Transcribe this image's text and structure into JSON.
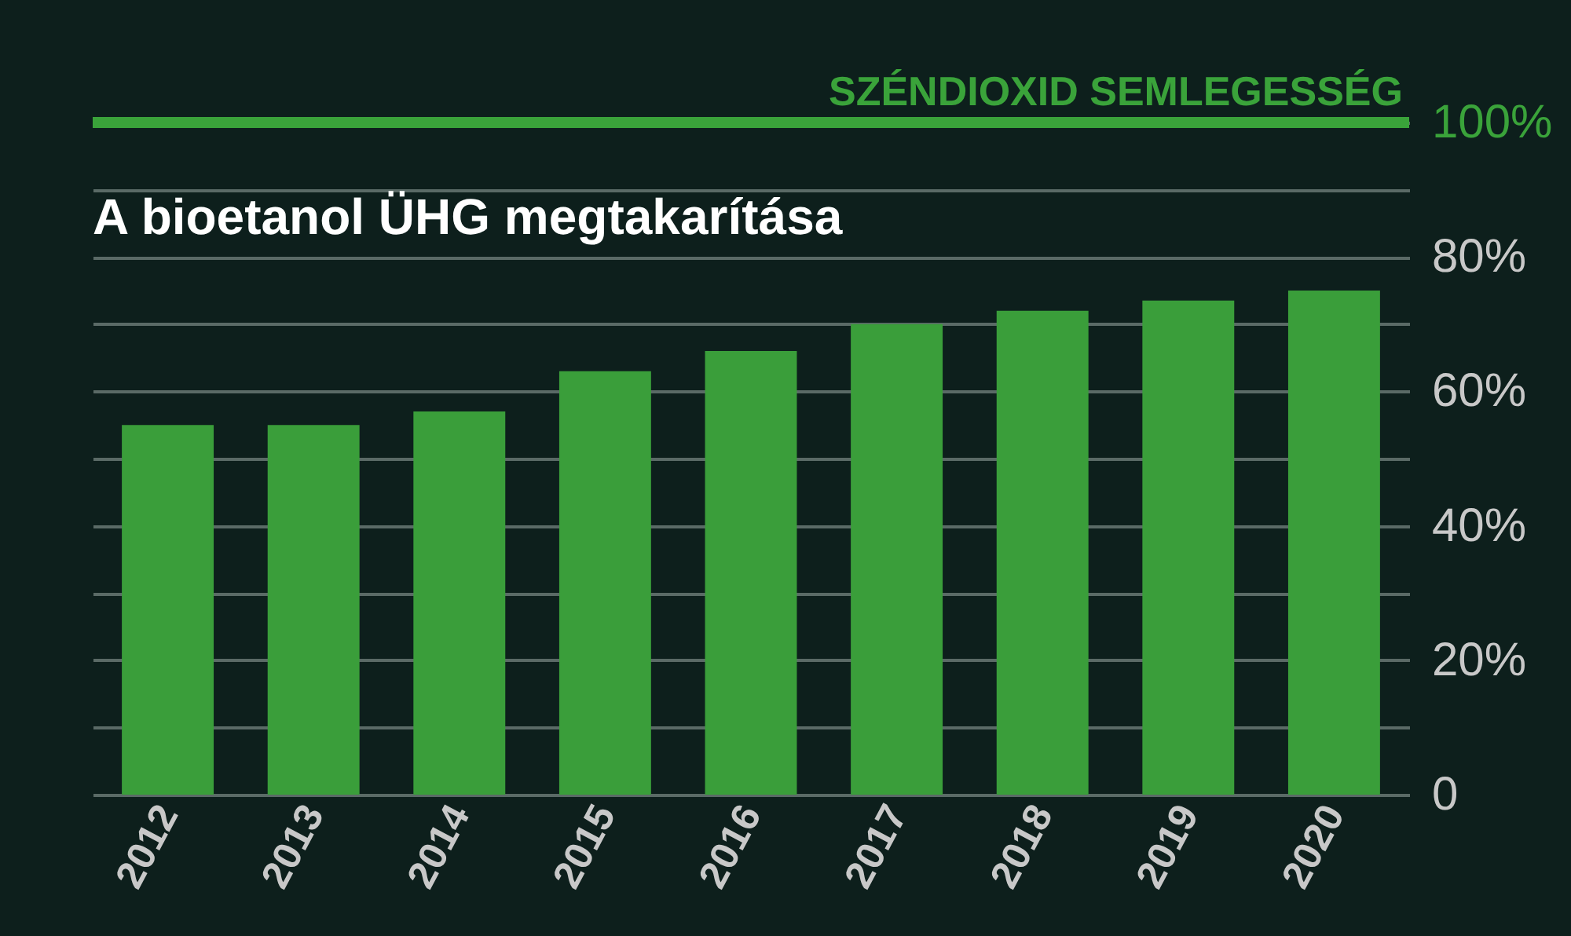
{
  "chart_data": {
    "type": "bar",
    "title": "A bioetanol ÜHG megtakarítása",
    "categories": [
      "2012",
      "2013",
      "2014",
      "2015",
      "2016",
      "2017",
      "2018",
      "2019",
      "2020"
    ],
    "values": [
      55,
      55,
      57,
      63,
      66,
      70,
      72,
      73.5,
      75
    ],
    "color": "#3a9e3a",
    "ylim": [
      0,
      100
    ],
    "yticks": [
      {
        "value": 0,
        "label": "0"
      },
      {
        "value": 10,
        "label": null
      },
      {
        "value": 20,
        "label": "20%"
      },
      {
        "value": 30,
        "label": null
      },
      {
        "value": 40,
        "label": "40%"
      },
      {
        "value": 50,
        "label": null
      },
      {
        "value": 60,
        "label": "60%"
      },
      {
        "value": 70,
        "label": null
      },
      {
        "value": 80,
        "label": "80%"
      },
      {
        "value": 90,
        "label": null
      },
      {
        "value": 100,
        "label": "100%"
      }
    ],
    "grid": "y",
    "ref_lines": [
      {
        "axis": "y",
        "value": 100,
        "label": "SZÉNDIOXID SEMLEGESSÉG",
        "color": "#3aa33a"
      }
    ]
  }
}
